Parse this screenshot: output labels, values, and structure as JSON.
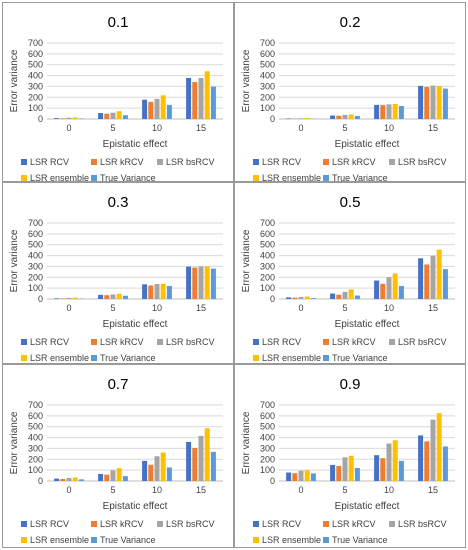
{
  "colors": {
    "LSR RCV": "#4472c4",
    "LSR kRCV": "#ed7d31",
    "LSR bsRCV": "#a5a5a5",
    "LSR ensemble": "#ffc000",
    "True Variance": "#5b9bd5",
    "grid": "#d9d9d9",
    "panel_border": "#9a9a9a"
  },
  "chart_data": [
    {
      "type": "bar",
      "title": "0.1",
      "xlabel": "Epistatic effect",
      "ylabel": "Error variance",
      "categories": [
        "0",
        "5",
        "10",
        "15"
      ],
      "ylim": [
        0,
        700
      ],
      "yticks": [
        0,
        100,
        200,
        300,
        400,
        500,
        600,
        700
      ],
      "grid": true,
      "legend_position": "bottom",
      "series": [
        {
          "name": "LSR RCV",
          "values": [
            8,
            55,
            178,
            378
          ]
        },
        {
          "name": "LSR kRCV",
          "values": [
            6,
            48,
            158,
            340
          ]
        },
        {
          "name": "LSR bsRCV",
          "values": [
            12,
            58,
            185,
            378
          ]
        },
        {
          "name": "LSR ensemble",
          "values": [
            15,
            72,
            218,
            440
          ]
        },
        {
          "name": "True Variance",
          "values": [
            5,
            35,
            130,
            298
          ]
        }
      ]
    },
    {
      "type": "bar",
      "title": "0.2",
      "xlabel": "Epistatic effect",
      "ylabel": "Error variance",
      "categories": [
        "0",
        "5",
        "10",
        "15"
      ],
      "ylim": [
        0,
        700
      ],
      "yticks": [
        0,
        100,
        200,
        300,
        400,
        500,
        600,
        700
      ],
      "grid": true,
      "legend_position": "bottom",
      "series": [
        {
          "name": "LSR RCV",
          "values": [
            5,
            32,
            130,
            305
          ]
        },
        {
          "name": "LSR kRCV",
          "values": [
            4,
            30,
            128,
            295
          ]
        },
        {
          "name": "LSR bsRCV",
          "values": [
            7,
            38,
            135,
            308
          ]
        },
        {
          "name": "LSR ensemble",
          "values": [
            9,
            42,
            138,
            305
          ]
        },
        {
          "name": "True Variance",
          "values": [
            3,
            28,
            120,
            280
          ]
        }
      ]
    },
    {
      "type": "bar",
      "title": "0.3",
      "xlabel": "Epistatic effect",
      "ylabel": "Error variance",
      "categories": [
        "0",
        "5",
        "10",
        "15"
      ],
      "ylim": [
        0,
        700
      ],
      "yticks": [
        0,
        100,
        200,
        300,
        400,
        500,
        600,
        700
      ],
      "grid": true,
      "legend_position": "bottom",
      "series": [
        {
          "name": "LSR RCV",
          "values": [
            6,
            38,
            135,
            298
          ]
        },
        {
          "name": "LSR kRCV",
          "values": [
            5,
            35,
            125,
            290
          ]
        },
        {
          "name": "LSR bsRCV",
          "values": [
            10,
            42,
            138,
            300
          ]
        },
        {
          "name": "LSR ensemble",
          "values": [
            12,
            48,
            140,
            300
          ]
        },
        {
          "name": "True Variance",
          "values": [
            4,
            30,
            120,
            280
          ]
        }
      ]
    },
    {
      "type": "bar",
      "title": "0.5",
      "xlabel": "Epistatic effect",
      "ylabel": "Error variance",
      "categories": [
        "0",
        "5",
        "10",
        "15"
      ],
      "ylim": [
        0,
        700
      ],
      "yticks": [
        0,
        100,
        200,
        300,
        400,
        500,
        600,
        700
      ],
      "grid": true,
      "legend_position": "bottom",
      "series": [
        {
          "name": "LSR RCV",
          "values": [
            15,
            50,
            170,
            375
          ]
        },
        {
          "name": "LSR kRCV",
          "values": [
            12,
            40,
            140,
            318
          ]
        },
        {
          "name": "LSR bsRCV",
          "values": [
            18,
            65,
            200,
            398
          ]
        },
        {
          "name": "LSR ensemble",
          "values": [
            22,
            88,
            235,
            455
          ]
        },
        {
          "name": "True Variance",
          "values": [
            8,
            32,
            120,
            275
          ]
        }
      ]
    },
    {
      "type": "bar",
      "title": "0.7",
      "xlabel": "Epistatic effect",
      "ylabel": "Error variance",
      "categories": [
        "0",
        "5",
        "10",
        "15"
      ],
      "ylim": [
        0,
        700
      ],
      "yticks": [
        0,
        100,
        200,
        300,
        400,
        500,
        600,
        700
      ],
      "grid": true,
      "legend_position": "bottom",
      "series": [
        {
          "name": "LSR RCV",
          "values": [
            22,
            65,
            185,
            360
          ]
        },
        {
          "name": "LSR kRCV",
          "values": [
            18,
            58,
            150,
            305
          ]
        },
        {
          "name": "LSR bsRCV",
          "values": [
            28,
            98,
            228,
            415
          ]
        },
        {
          "name": "LSR ensemble",
          "values": [
            32,
            118,
            262,
            485
          ]
        },
        {
          "name": "True Variance",
          "values": [
            15,
            45,
            125,
            268
          ]
        }
      ]
    },
    {
      "type": "bar",
      "title": "0.9",
      "xlabel": "Epistatic effect",
      "ylabel": "Error variance",
      "categories": [
        "0",
        "5",
        "10",
        "15"
      ],
      "ylim": [
        0,
        700
      ],
      "yticks": [
        0,
        100,
        200,
        300,
        400,
        500,
        600,
        700
      ],
      "grid": true,
      "legend_position": "bottom",
      "series": [
        {
          "name": "LSR RCV",
          "values": [
            78,
            148,
            238,
            420
          ]
        },
        {
          "name": "LSR kRCV",
          "values": [
            72,
            138,
            210,
            365
          ]
        },
        {
          "name": "LSR bsRCV",
          "values": [
            95,
            218,
            345,
            565
          ]
        },
        {
          "name": "LSR ensemble",
          "values": [
            98,
            232,
            375,
            625
          ]
        },
        {
          "name": "True Variance",
          "values": [
            70,
            120,
            185,
            318
          ]
        }
      ]
    }
  ]
}
